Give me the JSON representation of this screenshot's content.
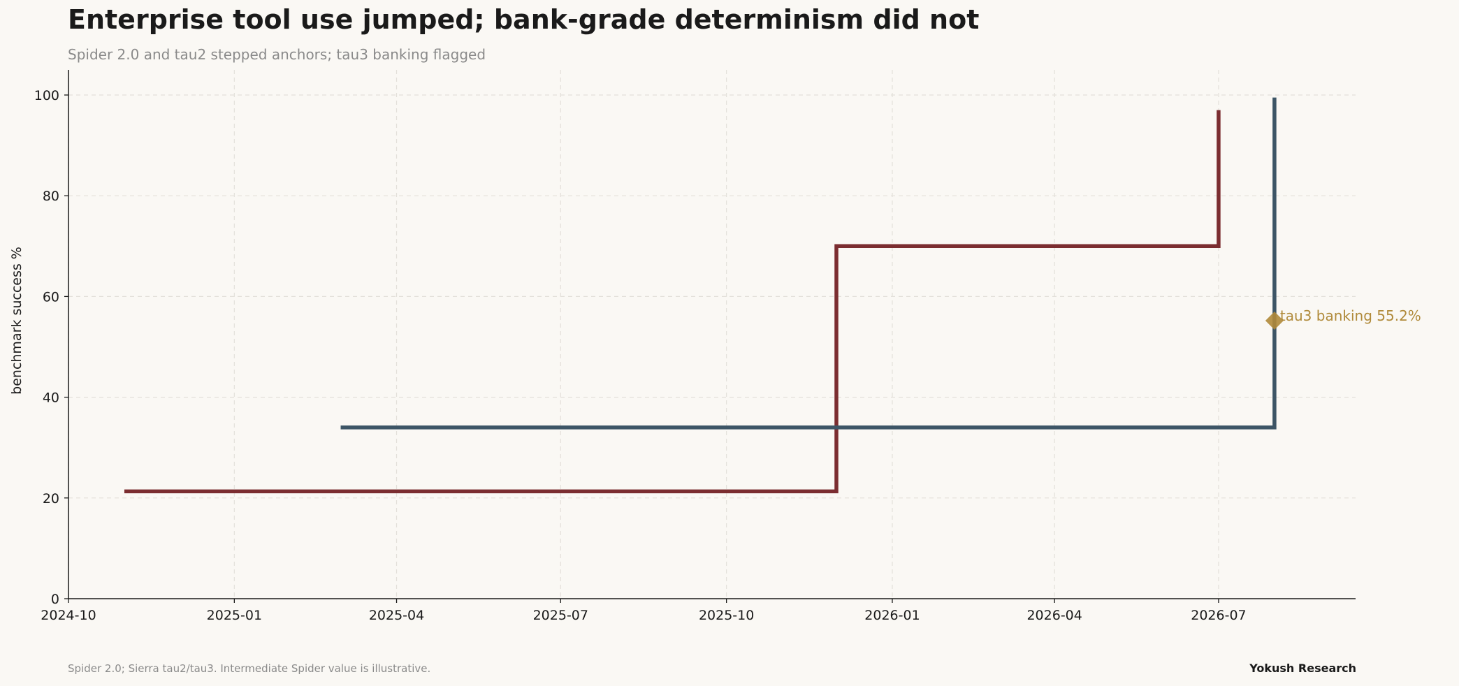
{
  "header": {
    "title": "Enterprise tool use jumped; bank-grade determinism did not",
    "subtitle": "Spider 2.0 and tau2 stepped anchors; tau3 banking flagged"
  },
  "footer": {
    "source": "Spider 2.0; Sierra tau2/tau3. Intermediate Spider value is illustrative.",
    "brand": "Yokush Research"
  },
  "chart_data": {
    "type": "line",
    "step": "post",
    "ylabel": "benchmark success %",
    "xlabel": "",
    "ylim": [
      0,
      100
    ],
    "yticks": [
      0,
      20,
      40,
      60,
      80,
      100
    ],
    "xlim": [
      "2024-10-01",
      "2026-09-15"
    ],
    "xticks": [
      "2024-10",
      "2025-01",
      "2025-04",
      "2025-07",
      "2025-10",
      "2026-01",
      "2026-04",
      "2026-07"
    ],
    "grid": true,
    "series": [
      {
        "color": "#7b2d30",
        "points": [
          {
            "x": "2024-11-01",
            "y": 21.3
          },
          {
            "x": "2025-12-01",
            "y": 70.0
          },
          {
            "x": "2026-07-01",
            "y": 97.0
          }
        ]
      },
      {
        "color": "#3d5566",
        "points": [
          {
            "x": "2025-03-01",
            "y": 34.0
          },
          {
            "x": "2026-08-01",
            "y": 99.5
          }
        ]
      }
    ],
    "annotations": [
      {
        "x": "2026-08-01",
        "y": 55.2,
        "label": "tau3 banking 55.2%",
        "color": "#b08a3a",
        "marker": "diamond"
      }
    ]
  }
}
